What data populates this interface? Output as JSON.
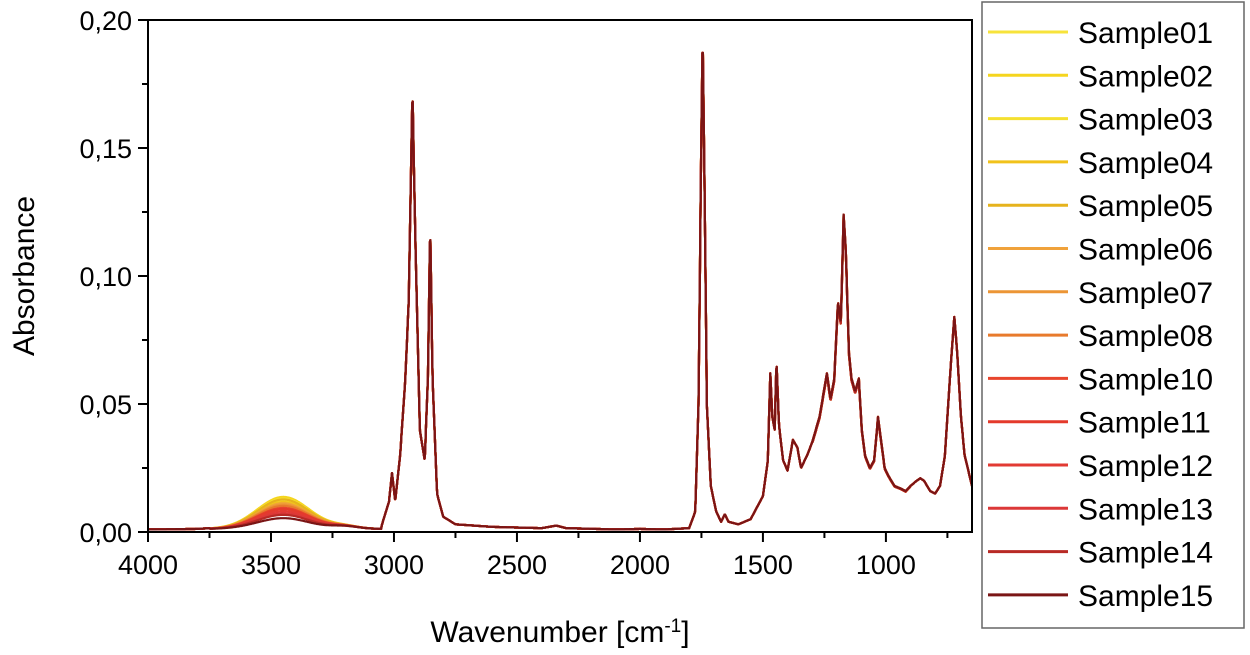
{
  "chart_data": {
    "type": "line",
    "xlabel": "Wavenumber [cm",
    "xlabel_sup": "-1",
    "xlabel_end": "]",
    "ylabel": "Absorbance",
    "xlim": [
      4000,
      650
    ],
    "ylim": [
      0,
      0.2
    ],
    "x_reversed": true,
    "xticks": [
      4000,
      3500,
      3000,
      2500,
      2000,
      1500,
      1000
    ],
    "xtick_labels": [
      "4000",
      "3500",
      "3000",
      "2500",
      "2000",
      "1500",
      "1000"
    ],
    "yticks": [
      0,
      0.05,
      0.1,
      0.15,
      0.2
    ],
    "ytick_labels": [
      "0,00",
      "0,05",
      "0,10",
      "0,15",
      "0,20"
    ],
    "grid": false,
    "legend_position": "right",
    "base_spectrum": [
      [
        4000,
        0.001
      ],
      [
        3800,
        0.0012
      ],
      [
        3700,
        0.0018
      ],
      [
        3620,
        0.0035
      ],
      [
        3560,
        0.006
      ],
      [
        3480,
        0.0075
      ],
      [
        3420,
        0.0072
      ],
      [
        3360,
        0.006
      ],
      [
        3300,
        0.0042
      ],
      [
        3200,
        0.0022
      ],
      [
        3100,
        0.0016
      ],
      [
        3050,
        0.0025
      ],
      [
        3020,
        0.012
      ],
      [
        3008,
        0.023
      ],
      [
        2995,
        0.012
      ],
      [
        2975,
        0.03
      ],
      [
        2955,
        0.058
      ],
      [
        2940,
        0.09
      ],
      [
        2925,
        0.173
      ],
      [
        2912,
        0.11
      ],
      [
        2895,
        0.04
      ],
      [
        2875,
        0.028
      ],
      [
        2862,
        0.06
      ],
      [
        2853,
        0.12
      ],
      [
        2843,
        0.06
      ],
      [
        2825,
        0.015
      ],
      [
        2800,
        0.006
      ],
      [
        2750,
        0.003
      ],
      [
        2600,
        0.002
      ],
      [
        2400,
        0.0015
      ],
      [
        2340,
        0.0025
      ],
      [
        2300,
        0.0015
      ],
      [
        2100,
        0.001
      ],
      [
        2000,
        0.0012
      ],
      [
        1900,
        0.001
      ],
      [
        1800,
        0.0015
      ],
      [
        1775,
        0.008
      ],
      [
        1762,
        0.05
      ],
      [
        1752,
        0.14
      ],
      [
        1745,
        0.195
      ],
      [
        1738,
        0.14
      ],
      [
        1728,
        0.05
      ],
      [
        1712,
        0.018
      ],
      [
        1690,
        0.008
      ],
      [
        1670,
        0.004
      ],
      [
        1655,
        0.007
      ],
      [
        1640,
        0.004
      ],
      [
        1600,
        0.003
      ],
      [
        1550,
        0.005
      ],
      [
        1500,
        0.014
      ],
      [
        1480,
        0.028
      ],
      [
        1470,
        0.062
      ],
      [
        1462,
        0.045
      ],
      [
        1452,
        0.04
      ],
      [
        1445,
        0.067
      ],
      [
        1435,
        0.042
      ],
      [
        1418,
        0.028
      ],
      [
        1400,
        0.024
      ],
      [
        1378,
        0.036
      ],
      [
        1360,
        0.033
      ],
      [
        1345,
        0.025
      ],
      [
        1320,
        0.03
      ],
      [
        1300,
        0.035
      ],
      [
        1270,
        0.045
      ],
      [
        1240,
        0.062
      ],
      [
        1225,
        0.052
      ],
      [
        1210,
        0.06
      ],
      [
        1195,
        0.09
      ],
      [
        1183,
        0.082
      ],
      [
        1172,
        0.124
      ],
      [
        1163,
        0.11
      ],
      [
        1150,
        0.07
      ],
      [
        1140,
        0.06
      ],
      [
        1125,
        0.055
      ],
      [
        1110,
        0.06
      ],
      [
        1098,
        0.04
      ],
      [
        1085,
        0.03
      ],
      [
        1065,
        0.025
      ],
      [
        1048,
        0.028
      ],
      [
        1032,
        0.045
      ],
      [
        1020,
        0.036
      ],
      [
        1005,
        0.025
      ],
      [
        990,
        0.022
      ],
      [
        965,
        0.018
      ],
      [
        940,
        0.017
      ],
      [
        920,
        0.016
      ],
      [
        900,
        0.018
      ],
      [
        875,
        0.02
      ],
      [
        860,
        0.021
      ],
      [
        845,
        0.02
      ],
      [
        820,
        0.016
      ],
      [
        800,
        0.015
      ],
      [
        780,
        0.018
      ],
      [
        760,
        0.03
      ],
      [
        740,
        0.06
      ],
      [
        722,
        0.084
      ],
      [
        710,
        0.07
      ],
      [
        695,
        0.045
      ],
      [
        680,
        0.03
      ],
      [
        660,
        0.022
      ],
      [
        650,
        0.018
      ]
    ],
    "oh_band_peaks": [
      0.011,
      0.0125,
      0.0118,
      0.0105,
      0.0115,
      0.01,
      0.0095,
      0.009,
      0.0082,
      0.0078,
      0.007,
      0.0062,
      0.0055,
      0.0042
    ],
    "series": [
      {
        "name": "Sample01",
        "color": "#f7e33b"
      },
      {
        "name": "Sample02",
        "color": "#f5d51e"
      },
      {
        "name": "Sample03",
        "color": "#f4e030"
      },
      {
        "name": "Sample04",
        "color": "#f1c21b"
      },
      {
        "name": "Sample05",
        "color": "#e6b31c"
      },
      {
        "name": "Sample06",
        "color": "#f0a23b"
      },
      {
        "name": "Sample07",
        "color": "#ec9535"
      },
      {
        "name": "Sample08",
        "color": "#e87a2c"
      },
      {
        "name": "Sample10",
        "color": "#e8452d"
      },
      {
        "name": "Sample11",
        "color": "#e43a2b"
      },
      {
        "name": "Sample12",
        "color": "#e23a33"
      },
      {
        "name": "Sample13",
        "color": "#dc3838"
      },
      {
        "name": "Sample14",
        "color": "#b82a25"
      },
      {
        "name": "Sample15",
        "color": "#7a1515"
      }
    ]
  }
}
